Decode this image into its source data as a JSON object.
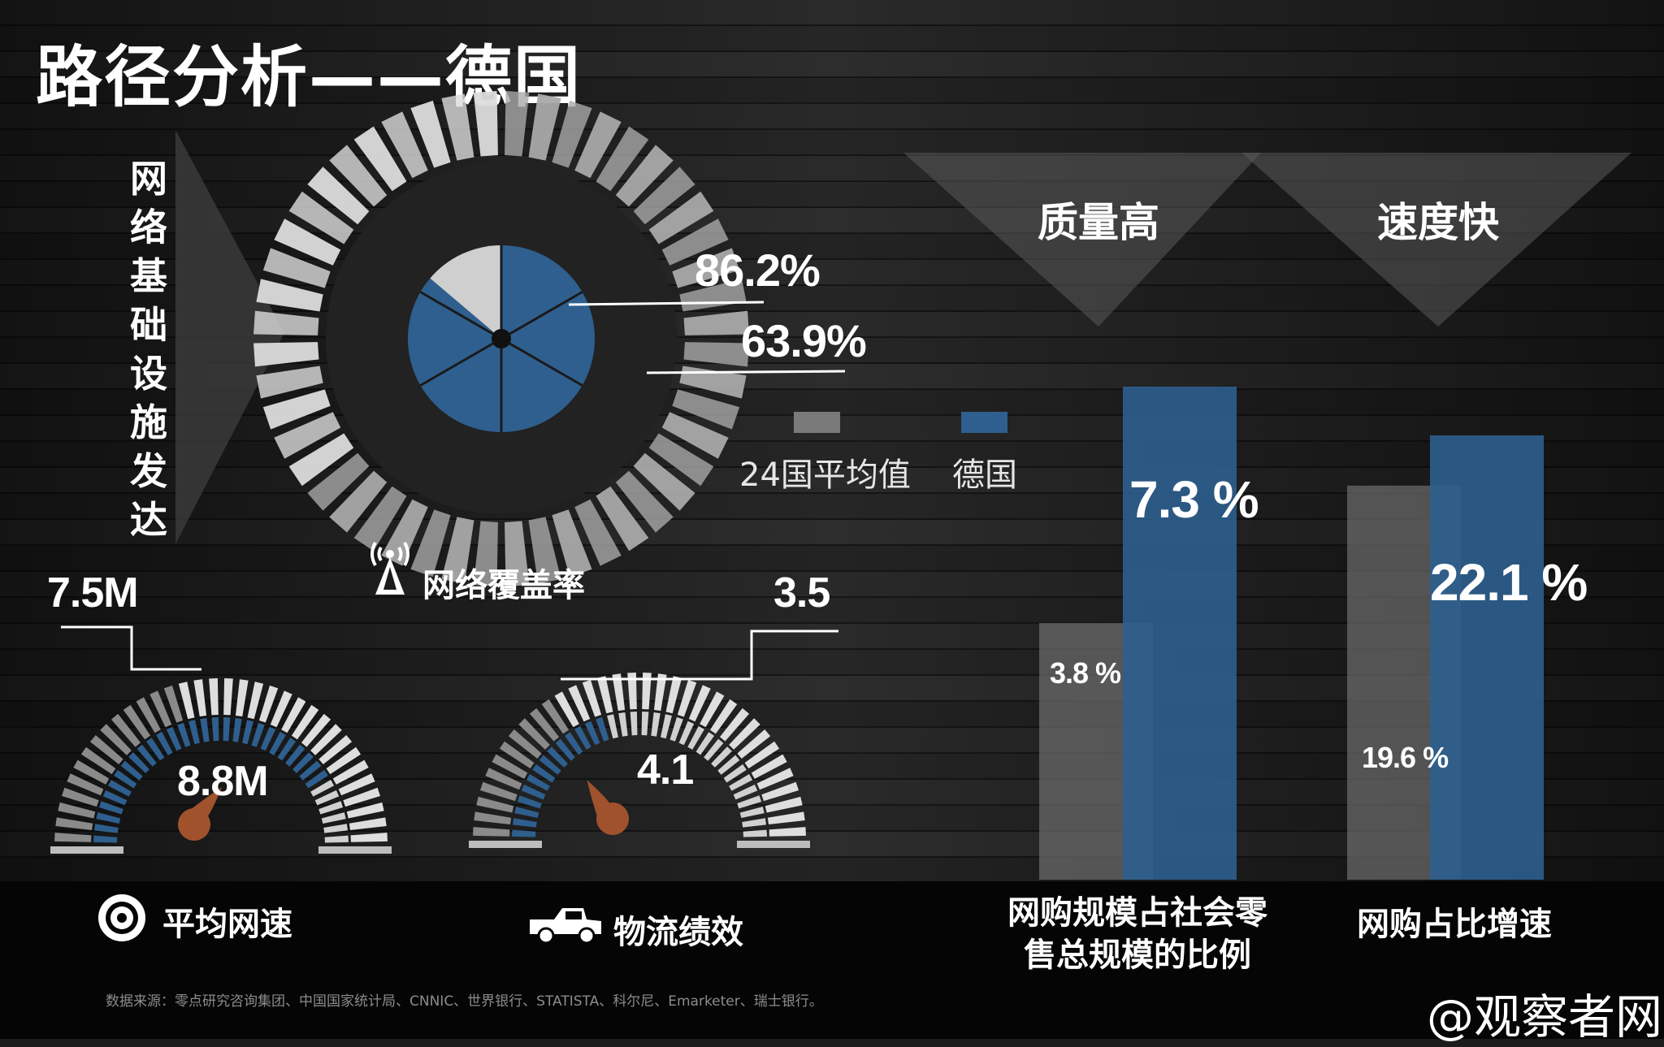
{
  "page": {
    "title": "路径分析——德国",
    "side_label": "网络基础设施发达",
    "source_note": "数据来源：零点研究咨询集团、中国国家统计局、CNNIC、世界银行、STATISTA、科尔尼、Emarketer、瑞士银行。",
    "brand": "@观察者网"
  },
  "colors": {
    "germany": "#2e5f8e",
    "average": "#7a7a7a",
    "light": "#d8d8d8",
    "accent": "#a0522d"
  },
  "legend": {
    "average_label": "24国平均值",
    "germany_label": "德国"
  },
  "chart_data": [
    {
      "type": "radial",
      "caption": "网络覆盖率",
      "icon": "signal-tower-icon",
      "series": [
        {
          "name": "德国",
          "value": 86.2,
          "label": "86.2%"
        },
        {
          "name": "24国平均值",
          "value": 63.9,
          "label": "63.9%"
        }
      ],
      "range": [
        0,
        100
      ]
    },
    {
      "type": "gauge",
      "caption": "平均网速",
      "icon": "speedometer-icon",
      "average": {
        "value": 7.5,
        "label": "7.5M"
      },
      "germany": {
        "value": 8.8,
        "label": "8.8M"
      }
    },
    {
      "type": "gauge",
      "caption": "物流绩效",
      "icon": "pickup-truck-icon",
      "average": {
        "value": 3.5,
        "label": "3.5"
      },
      "germany": {
        "value": 4.1,
        "label": "4.1"
      }
    },
    {
      "type": "bar",
      "header": "质量高",
      "caption": "网购规模占社会零售总规模的比例",
      "caption_lines": [
        "网购规模占社会零",
        "售总规模的比例"
      ],
      "series": [
        {
          "name": "24国平均值",
          "value": 3.8,
          "label": "3.8 %"
        },
        {
          "name": "德国",
          "value": 7.3,
          "label": "7.3 %"
        }
      ]
    },
    {
      "type": "bar",
      "header": "速度快",
      "caption": "网购占比增速",
      "series": [
        {
          "name": "24国平均值",
          "value": 19.6,
          "label": "19.6 %"
        },
        {
          "name": "德国",
          "value": 22.1,
          "label": "22.1 %"
        }
      ]
    }
  ]
}
